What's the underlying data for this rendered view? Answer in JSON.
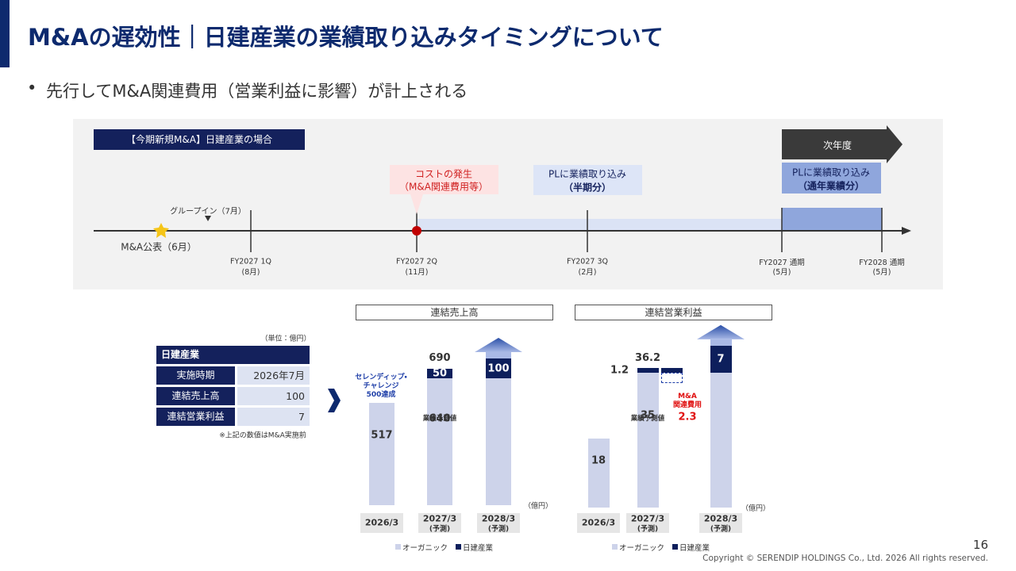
{
  "header": {
    "title": "M&Aの遅効性｜日建産業の業績取り込みタイミングについて",
    "bullet": "先行してM&A関連費用（営業利益に影響）が計上される"
  },
  "timeline": {
    "label": "【今期新規M&A】日建産業の場合",
    "next_year": "次年度",
    "announce": "M&A公表（6月）",
    "group_in": "グループイン（7月）",
    "cost": {
      "title": "コストの発生",
      "sub": "（M&A関連費用等）"
    },
    "pl_half": {
      "title": "PLに業績取り込み",
      "sub": "（半期分）"
    },
    "pl_full": {
      "title": "PLに業績取り込み",
      "sub": "（通年業績分）"
    },
    "ticks": [
      {
        "label": "FY2027  1Q",
        "sub": "(8月)"
      },
      {
        "label": "FY2027  2Q",
        "sub": "(11月)"
      },
      {
        "label": "FY2027  3Q",
        "sub": "(2月)"
      },
      {
        "label": "FY2027  通期",
        "sub": "(5月)"
      },
      {
        "label": "FY2028  通期",
        "sub": "(5月)"
      }
    ]
  },
  "table": {
    "unit": "（単位：億円）",
    "header": "日建産業",
    "rows": [
      [
        "実施時期",
        "2026年7月"
      ],
      [
        "連結売上高",
        "100"
      ],
      [
        "連結営業利益",
        "7"
      ]
    ],
    "note": "※上記の数値はM&A実施前"
  },
  "chart_data": [
    {
      "type": "bar",
      "stacked": true,
      "title": "連結売上高",
      "unit": "（億円）",
      "categories": [
        "2026/3",
        "2027/3",
        "2028/3"
      ],
      "category_notes": [
        null,
        "(予測)",
        "(予測)"
      ],
      "series": [
        {
          "name": "オーガニック",
          "color": "#cdd3ea",
          "values": [
            517,
            640,
            640
          ],
          "value_labels": [
            "517",
            "640",
            null
          ]
        },
        {
          "name": "日建産業",
          "color": "#0d1f5c",
          "values": [
            null,
            50,
            100
          ]
        }
      ],
      "annotations": [
        "690",
        "セレンディップ・\nチャレンジ\n500達成",
        "業績予測値"
      ]
    },
    {
      "type": "bar",
      "stacked": true,
      "title": "連結営業利益",
      "unit": "（億円）",
      "categories": [
        "2026/3",
        "2027/3",
        "2028/3"
      ],
      "category_notes": [
        null,
        "(予測)",
        "(予測)"
      ],
      "series": [
        {
          "name": "オーガニック",
          "color": "#cdd3ea",
          "values": [
            18,
            35,
            35
          ],
          "value_labels": [
            "18",
            "35",
            null
          ]
        },
        {
          "name": "日建産業",
          "color": "#0d1f5c",
          "values": [
            null,
            1.2,
            7
          ]
        }
      ],
      "annotations": [
        "36.2",
        "業績予測値"
      ],
      "cost": {
        "label": "M&A\n関連費用",
        "value": 2.3
      }
    }
  ],
  "footer": {
    "page": "16",
    "copyright": "Copyright © SERENDIP HOLDINGS Co., Ltd. 2026 All rights reserved."
  }
}
